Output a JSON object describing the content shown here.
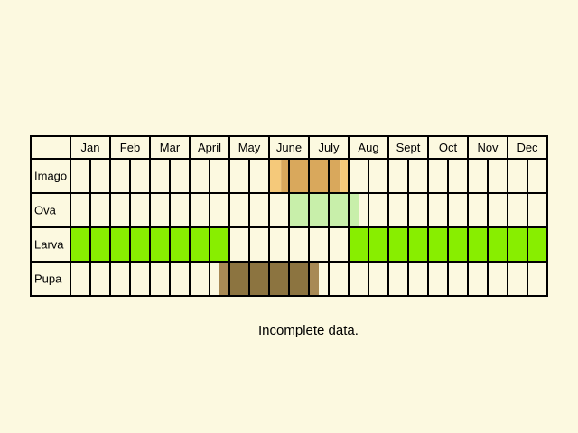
{
  "chart_data": {
    "type": "table",
    "months": [
      "Jan",
      "Feb",
      "Mar",
      "Apr",
      "May",
      "June",
      "July",
      "Aug",
      "Sept",
      "Oct",
      "Nov",
      "Dec"
    ],
    "column_labels": [
      "Jan",
      "Feb",
      "Mar",
      "April",
      "May",
      "June",
      "July",
      "Aug",
      "Sept",
      "Oct",
      "Nov",
      "Dec"
    ],
    "stages": [
      {
        "name": "Imago",
        "periods": [
          {
            "start": 6.0,
            "end": 6.3,
            "color": "#f5c97a"
          },
          {
            "start": 6.3,
            "end": 7.8,
            "color": "#d9a85c"
          },
          {
            "start": 7.8,
            "end": 8.0,
            "color": "#f5c97a"
          }
        ]
      },
      {
        "name": "Ova",
        "periods": [
          {
            "start": 6.5,
            "end": 8.25,
            "color": "#c8efaa"
          }
        ]
      },
      {
        "name": "Larva",
        "periods": [
          {
            "start": 1.0,
            "end": 5.0,
            "color": "#88ee00"
          },
          {
            "start": 8.0,
            "end": 13.0,
            "color": "#88ee00"
          }
        ]
      },
      {
        "name": "Pupa",
        "periods": [
          {
            "start": 4.75,
            "end": 5.0,
            "color": "#a88a55"
          },
          {
            "start": 5.0,
            "end": 7.0,
            "color": "#8c7440"
          },
          {
            "start": 7.0,
            "end": 7.25,
            "color": "#a88a55"
          }
        ]
      }
    ]
  },
  "note": "Incomplete data.",
  "colors": {
    "background": "#fcf9e0",
    "grid": "#000000"
  }
}
